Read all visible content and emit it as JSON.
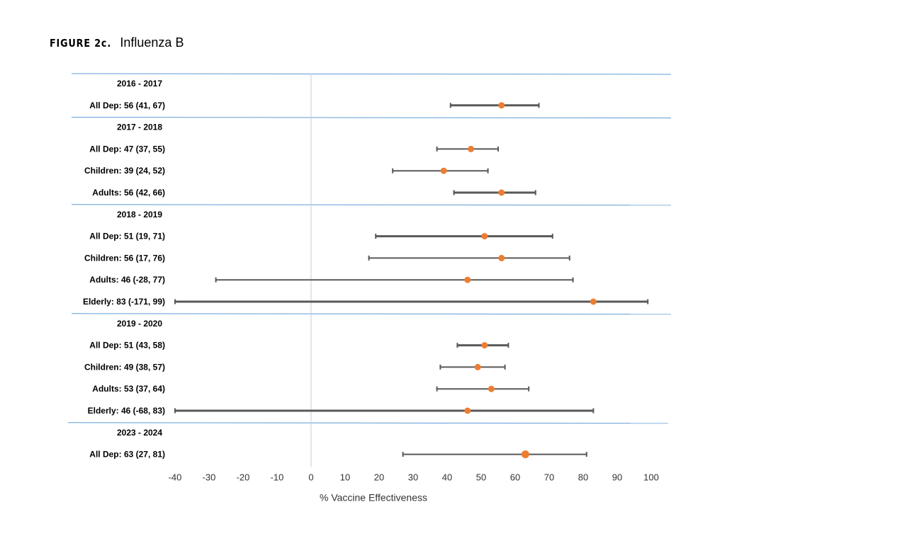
{
  "figure": {
    "label": "FIGURE 2c.",
    "subtitle": "Influenza B"
  },
  "colors": {
    "interval": "#595959",
    "point": "#ed7d31",
    "separator": "#5b9bd5",
    "zero_line": "#bfcfe0",
    "text": "#000000"
  },
  "chart_data": {
    "type": "forest",
    "title": "",
    "xlabel": "% Vaccine Effectiveness",
    "xlim": [
      -40,
      100
    ],
    "xticks": [
      -40,
      -30,
      -20,
      -10,
      0,
      10,
      20,
      30,
      40,
      50,
      60,
      70,
      80,
      90,
      100
    ],
    "reference_line": 0,
    "grid": false,
    "rows": [
      {
        "kind": "header",
        "label": "2016 - 2017"
      },
      {
        "kind": "estimate",
        "label": "All Dep: 56 (41, 67)",
        "value": 56,
        "lower": 41,
        "upper": 67,
        "bold_line": true
      },
      {
        "kind": "header",
        "label": "2017 - 2018"
      },
      {
        "kind": "estimate",
        "label": "All Dep: 47 (37, 55)",
        "value": 47,
        "lower": 37,
        "upper": 55,
        "bold_line": false
      },
      {
        "kind": "estimate",
        "label": "Children: 39 (24, 52)",
        "value": 39,
        "lower": 24,
        "upper": 52,
        "bold_line": false
      },
      {
        "kind": "estimate",
        "label": "Adults: 56 (42, 66)",
        "value": 56,
        "lower": 42,
        "upper": 66,
        "bold_line": true
      },
      {
        "kind": "header",
        "label": "2018 - 2019"
      },
      {
        "kind": "estimate",
        "label": "All Dep: 51 (19, 71)",
        "value": 51,
        "lower": 19,
        "upper": 71,
        "bold_line": true
      },
      {
        "kind": "estimate",
        "label": "Children: 56 (17, 76)",
        "value": 56,
        "lower": 17,
        "upper": 76,
        "bold_line": false
      },
      {
        "kind": "estimate",
        "label": "Adults: 46 (-28, 77)",
        "value": 46,
        "lower": -28,
        "upper": 77,
        "bold_line": false
      },
      {
        "kind": "estimate",
        "label": "Elderly: 83 (-171, 99)",
        "value": 83,
        "lower": -40,
        "upper": 99,
        "bold_line": true
      },
      {
        "kind": "header",
        "label": "2019 - 2020"
      },
      {
        "kind": "estimate",
        "label": "All Dep: 51 (43, 58)",
        "value": 51,
        "lower": 43,
        "upper": 58,
        "bold_line": true
      },
      {
        "kind": "estimate",
        "label": "Children: 49 (38, 57)",
        "value": 49,
        "lower": 38,
        "upper": 57,
        "bold_line": false
      },
      {
        "kind": "estimate",
        "label": "Adults: 53 (37, 64)",
        "value": 53,
        "lower": 37,
        "upper": 64,
        "bold_line": false
      },
      {
        "kind": "estimate",
        "label": "Elderly: 46 (-68, 83)",
        "value": 46,
        "lower": -40,
        "upper": 83,
        "bold_line": true
      },
      {
        "kind": "header",
        "label": "2023 - 2024"
      },
      {
        "kind": "estimate",
        "label": "All Dep: 63 (27, 81)",
        "value": 63,
        "lower": 27,
        "upper": 81,
        "bold_line": false
      }
    ]
  }
}
